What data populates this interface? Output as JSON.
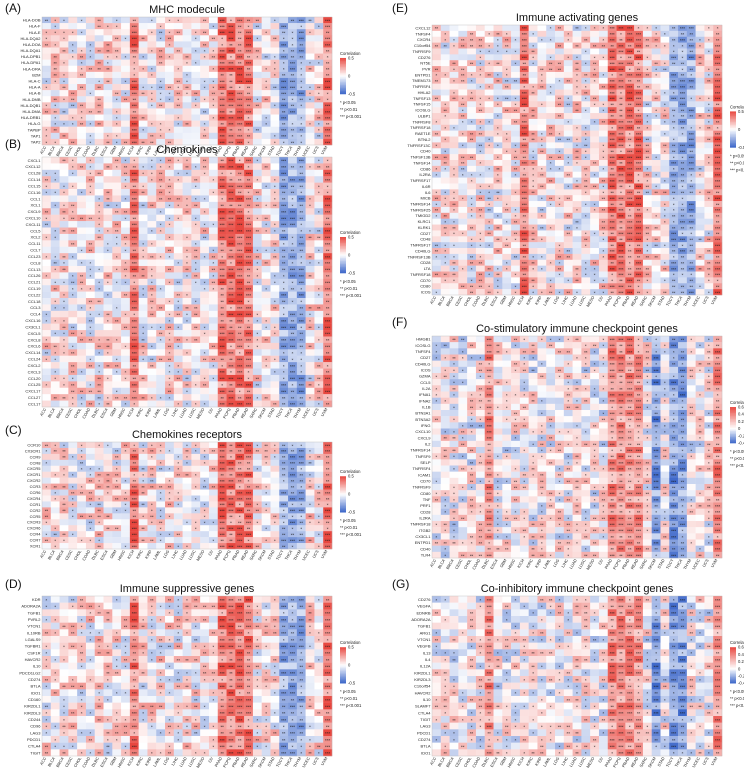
{
  "cancers": [
    "ACC",
    "BLCA",
    "BRCA",
    "CESC",
    "CHOL",
    "COAD",
    "DLBC",
    "ESCA",
    "GBM",
    "HNSC",
    "KICH",
    "KIRC",
    "KIRP",
    "LAML",
    "LGG",
    "LIHC",
    "LUAD",
    "LUSC",
    "MESO",
    "OV",
    "PAAD",
    "PCPG",
    "PRAD",
    "READ",
    "SARC",
    "SKCM",
    "STAD",
    "TGCT",
    "THCA",
    "THYM",
    "UCEC",
    "UCS",
    "UVM"
  ],
  "legend": {
    "title": "Correlation",
    "sig1": "* p<0.05",
    "sig2": "** p<0.01",
    "sig3": "*** p<0.001",
    "ticks_sym": [
      "0.5",
      "0",
      "-0.5"
    ],
    "ticks_neg": [
      "-0.4",
      "-0.2",
      "0",
      "0.2",
      "0.4",
      "0.6"
    ]
  },
  "colors": {
    "positive": "#e8473f",
    "negative": "#3b66c9",
    "zero": "#ffffff"
  },
  "chart_data": [
    {
      "panel": "(A)",
      "title": "MHC modecule",
      "type": "heatmap",
      "genes": [
        "HLA-DOB",
        "HLA-F",
        "HLA-E",
        "HLA-DQA2",
        "HLA-DOA",
        "HLA-DQA1",
        "HLA-DPB1",
        "HLA-DPA1",
        "HLA-DRA",
        "B2M",
        "HLA-C",
        "HLA-A",
        "HLA-B",
        "HLA-DMB",
        "HLA-DQB1",
        "HLA-DMA",
        "HLA-DRB1",
        "HLA-G",
        "TAPBP",
        "TAP1",
        "TAP2"
      ],
      "color_range": [
        -0.5,
        0.5
      ],
      "legend_ticks": "sym",
      "strong_columns": [
        "KICH",
        "PAAD",
        "PCPG",
        "PRAD",
        "READ",
        "UVM"
      ],
      "weak_columns": [
        "TGCT",
        "THCA",
        "THYM"
      ]
    },
    {
      "panel": "(B)",
      "title": "Chemokines",
      "type": "heatmap",
      "genes": [
        "CXCL1",
        "CXCL12",
        "CCL28",
        "CCL14",
        "CCL15",
        "CCL16",
        "CCL1",
        "XCL1",
        "CXCL9",
        "CXCL10",
        "CXCL11",
        "CCL5",
        "XCL2",
        "CCL11",
        "CCL7",
        "CCL23",
        "CCL8",
        "CCL13",
        "CCL26",
        "CCL21",
        "CCL19",
        "CCL22",
        "CCL18",
        "CCL3",
        "CCL4",
        "CXCL16",
        "CX3CL1",
        "CXCL5",
        "CXCL8",
        "CXCL6",
        "CXCL14",
        "CCL24",
        "CXCL2",
        "CXCL3",
        "CCL20",
        "CCL25",
        "CXCL17",
        "CCL27",
        "CCL17"
      ],
      "color_range": [
        -0.5,
        0.5
      ],
      "legend_ticks": "sym",
      "strong_columns": [
        "KICH",
        "PAAD",
        "PCPG",
        "PRAD",
        "READ",
        "UVM"
      ],
      "weak_columns": [
        "TGCT",
        "THCA",
        "THYM"
      ]
    },
    {
      "panel": "(C)",
      "title": "Chemokines receptors",
      "type": "heatmap",
      "genes": [
        "CCR10",
        "CX3CR1",
        "CCR9",
        "CCR8",
        "CXCR5",
        "CXCR1",
        "CXCR2",
        "CCR3",
        "CCR6",
        "CXCR4",
        "CCR1",
        "CCR2",
        "CCR5",
        "CXCR3",
        "CXCR6",
        "CCR4",
        "CCR7",
        "XCR1"
      ],
      "color_range": [
        -0.5,
        0.5
      ],
      "legend_ticks": "sym",
      "strong_columns": [
        "KICH",
        "PAAD",
        "PCPG",
        "PRAD",
        "READ",
        "UVM"
      ],
      "weak_columns": [
        "TGCT",
        "THCA",
        "THYM"
      ]
    },
    {
      "panel": "(D)",
      "title": "Immune suppressive genes",
      "type": "heatmap",
      "genes": [
        "KDR",
        "ADORA2A",
        "TGFB1",
        "PVRL2",
        "VTCN1",
        "IL10RB",
        "LGALS9",
        "TGFBR1",
        "CSF1R",
        "HAVCR2",
        "IL10",
        "PDCD1LG2",
        "CD274",
        "BTLA",
        "IDO1",
        "CD160",
        "KIR2DL1",
        "KIR2DL3",
        "CD244",
        "CD96",
        "LAG3",
        "PDCD1",
        "CTLA4",
        "TIGIT"
      ],
      "color_range": [
        -0.5,
        0.5
      ],
      "legend_ticks": "sym",
      "strong_columns": [
        "KICH",
        "PAAD",
        "PCPG",
        "PRAD",
        "READ",
        "UVM"
      ],
      "weak_columns": [
        "TGCT",
        "THCA",
        "THYM"
      ]
    },
    {
      "panel": "(E)",
      "title": "Immune activating genes",
      "type": "heatmap",
      "genes": [
        "CXCL12",
        "TNFSF4",
        "CXCR4",
        "C10orf54",
        "TNFRSF9",
        "CD276",
        "NT5E",
        "PVR",
        "ENTPD1",
        "TMEM173",
        "TNFRSF4",
        "HHLA2",
        "TNFSF13",
        "TNFSF15",
        "ICOSLG",
        "ULBP1",
        "TNFRSF8",
        "TNFRSF18",
        "RAET1E",
        "BTNL2",
        "TNFRSF13C",
        "CD40",
        "TNFSF13B",
        "TNFSF14",
        "CD86",
        "IL2RA",
        "TNFRSF17",
        "IL6R",
        "IL6",
        "MICB",
        "TNFRSF14",
        "TNFRSF25",
        "TMIGD2",
        "KLRC1",
        "KLRK1",
        "CD27",
        "CD48",
        "TNFRSF17",
        "CD40LG",
        "TNFRSF13B",
        "CD28",
        "LTA",
        "TNFRSF18",
        "CD70",
        "CD80",
        "ICOS"
      ],
      "color_range": [
        -0.5,
        0.5
      ],
      "legend_ticks": "sym",
      "strong_columns": [
        "KICH",
        "PAAD",
        "PCPG",
        "PRAD",
        "READ",
        "UVM"
      ],
      "weak_columns": [
        "TGCT",
        "THCA",
        "THYM"
      ]
    },
    {
      "panel": "(F)",
      "title": "Co-stimulatory immune checkpoint genes",
      "type": "heatmap",
      "genes": [
        "HMGB1",
        "ICOSLG",
        "TNFSF4",
        "CD27",
        "CD40LG",
        "ICOS",
        "GZMA",
        "CCL5",
        "IL2A",
        "IFNA1",
        "IFNA2",
        "IL1B",
        "BTN3A1",
        "BTN3A2",
        "IFNG",
        "CXCL10",
        "CXCL9",
        "IL2",
        "TNFRSF14",
        "TNFSF9",
        "SELP",
        "TNFRSF4",
        "ICAM1",
        "CD70",
        "TNFRSF9",
        "CD80",
        "TNF",
        "PRF1",
        "CD28",
        "IL2RA",
        "TNFRSF18",
        "ITGB2",
        "CX3CL1",
        "ENTPD1",
        "CD40",
        "TLR4"
      ],
      "color_range": [
        -0.4,
        0.6
      ],
      "legend_ticks": "neg",
      "strong_columns": [
        "DLBC",
        "PAAD",
        "PCPG",
        "PRAD",
        "READ",
        "UVM"
      ],
      "weak_columns": [
        "SKCM",
        "TGCT",
        "THCA"
      ]
    },
    {
      "panel": "(G)",
      "title": "Co-inhibitory immune checkpoint genes",
      "type": "heatmap",
      "genes": [
        "CD276",
        "VEGFA",
        "EDNRB",
        "ADORA2A",
        "TGFB1",
        "ARG1",
        "VTCN1",
        "VEGFB",
        "IL13",
        "IL4",
        "IL12A",
        "KIR2DL1",
        "KIR2DL3",
        "C10orf54",
        "HAVCR2",
        "IL10",
        "SLAMF7",
        "CTLA4",
        "TIGIT",
        "LAG3",
        "PDCD1",
        "CD274",
        "BTLA",
        "IDO1"
      ],
      "color_range": [
        -0.4,
        0.6
      ],
      "legend_ticks": "neg",
      "strong_columns": [
        "DLBC",
        "PAAD",
        "PCPG",
        "PRAD",
        "READ",
        "UVM"
      ],
      "weak_columns": [
        "SKCM",
        "TGCT",
        "THCA"
      ]
    }
  ]
}
